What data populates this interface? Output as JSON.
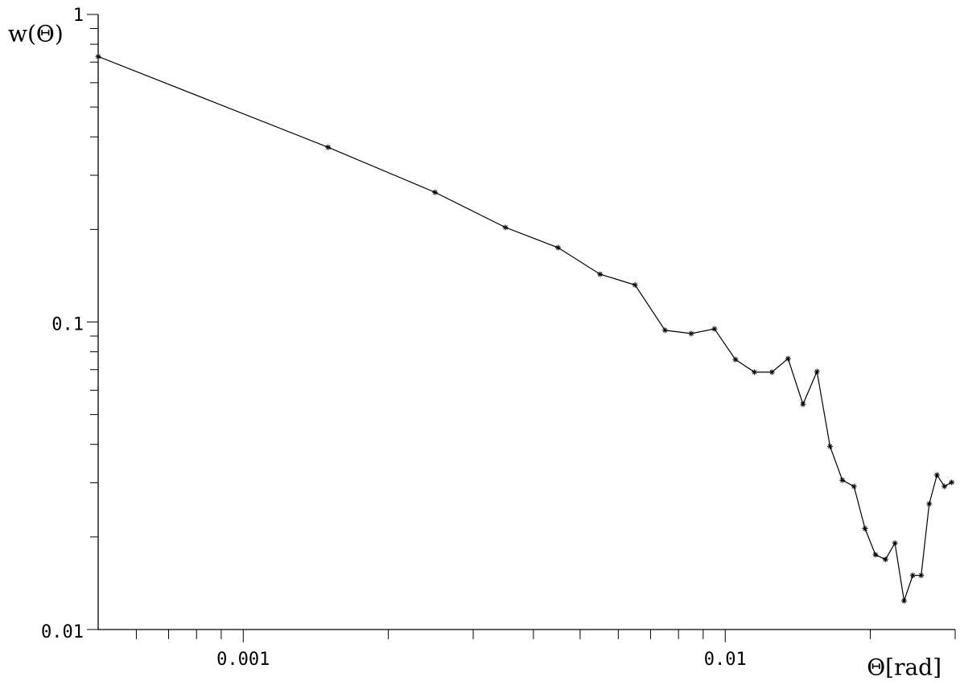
{
  "chart_data": {
    "type": "line",
    "xlabel": "Θ[rad]",
    "ylabel": "w(Θ)",
    "xscale": "log",
    "yscale": "log",
    "x": [
      0.0005,
      0.0015,
      0.0025,
      0.0035,
      0.0045,
      0.0055,
      0.0065,
      0.0075,
      0.0085,
      0.0095,
      0.0105,
      0.0115,
      0.0125,
      0.0135,
      0.0145,
      0.0155,
      0.0165,
      0.0175,
      0.0185,
      0.0195,
      0.0205,
      0.0215,
      0.0225,
      0.0235,
      0.0245,
      0.0255,
      0.0265,
      0.0275,
      0.0285,
      0.0295
    ],
    "series": [
      {
        "color": "#000000",
        "marker": "*",
        "values": [
          0.73,
          0.37,
          0.264,
          0.203,
          0.1745,
          0.143,
          0.132,
          0.094,
          0.0917,
          0.095,
          0.0755,
          0.0687,
          0.0687,
          0.076,
          0.054,
          0.069,
          0.0394,
          0.0306,
          0.0292,
          0.0213,
          0.0175,
          0.0169,
          0.0191,
          0.0124,
          0.015,
          0.015,
          0.0256,
          0.0318,
          0.0292,
          0.0301
        ]
      }
    ],
    "xlim": [
      0.0005,
      0.03
    ],
    "ylim": [
      0.01,
      1
    ],
    "xticks": [
      0.001,
      0.01
    ],
    "yticks": [
      0.01,
      0.1,
      1
    ],
    "xminorticks": [
      0.0006,
      0.0007,
      0.0008,
      0.0009,
      0.002,
      0.003,
      0.004,
      0.005,
      0.006,
      0.007,
      0.008,
      0.009,
      0.02,
      0.03
    ],
    "yminorticks": [
      0.02,
      0.03,
      0.04,
      0.05,
      0.06,
      0.07,
      0.08,
      0.09,
      0.2,
      0.3,
      0.4,
      0.5,
      0.6,
      0.7,
      0.8,
      0.9
    ],
    "grid": false
  }
}
